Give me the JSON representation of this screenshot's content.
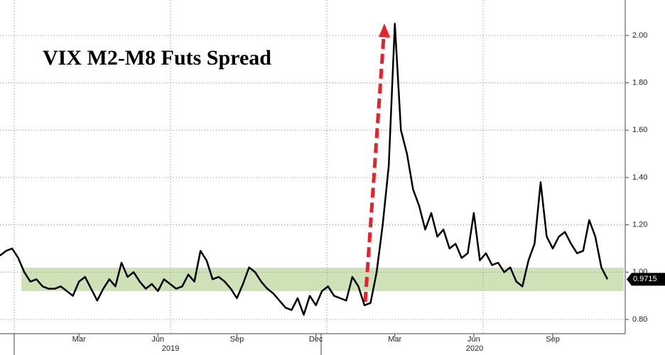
{
  "chart_data": {
    "type": "line",
    "title": "VIX M2-M8 Futs Spread",
    "categories": [
      null,
      null,
      null,
      null,
      null,
      null,
      null,
      null,
      null,
      null,
      null,
      null,
      null,
      "Mar",
      null,
      null,
      null,
      null,
      null,
      null,
      null,
      null,
      null,
      null,
      null,
      null,
      "Jun",
      null,
      null,
      null,
      null,
      null,
      null,
      null,
      null,
      null,
      null,
      null,
      null,
      "Sep",
      null,
      null,
      null,
      null,
      null,
      null,
      null,
      null,
      null,
      null,
      null,
      null,
      "Dec",
      null,
      null,
      null,
      null,
      null,
      null,
      null,
      null,
      null,
      null,
      null,
      null,
      "Mar",
      null,
      null,
      null,
      null,
      null,
      null,
      null,
      null,
      null,
      null,
      null,
      null,
      "Jun",
      null,
      null,
      null,
      null,
      null,
      null,
      null,
      null,
      null,
      null,
      null,
      null,
      "Sep",
      null,
      null,
      null,
      null,
      null,
      null,
      null,
      null,
      null
    ],
    "year_labels": [
      "2019",
      "2020"
    ],
    "series": [
      {
        "name": "VIX M2-M8 Futs Spread",
        "color": "#000000",
        "values": [
          1.07,
          1.09,
          1.1,
          1.06,
          1.0,
          0.96,
          0.97,
          0.94,
          0.93,
          0.93,
          0.94,
          0.92,
          0.9,
          0.96,
          0.98,
          0.93,
          0.88,
          0.93,
          0.97,
          0.94,
          1.04,
          0.98,
          1.0,
          0.96,
          0.93,
          0.95,
          0.92,
          0.97,
          0.95,
          0.93,
          0.94,
          0.99,
          0.96,
          1.09,
          1.05,
          0.97,
          0.98,
          0.96,
          0.93,
          0.89,
          0.95,
          1.02,
          1.0,
          0.96,
          0.93,
          0.91,
          0.88,
          0.85,
          0.84,
          0.89,
          0.82,
          0.9,
          0.86,
          0.92,
          0.94,
          0.9,
          0.89,
          0.88,
          0.98,
          0.94,
          0.86,
          0.87,
          1.0,
          1.2,
          1.45,
          2.05,
          1.6,
          1.5,
          1.35,
          1.28,
          1.18,
          1.25,
          1.15,
          1.18,
          1.1,
          1.12,
          1.06,
          1.08,
          1.25,
          1.05,
          1.08,
          1.03,
          1.04,
          1.0,
          1.02,
          0.96,
          0.94,
          1.05,
          1.12,
          1.38,
          1.15,
          1.1,
          1.15,
          1.17,
          1.12,
          1.08,
          1.09,
          1.22,
          1.15,
          1.02,
          0.97
        ]
      }
    ],
    "last_value_label": "0.9715",
    "ylim": [
      0.74,
      2.15
    ],
    "yticks": [
      {
        "value": 0.8,
        "label": "0.80"
      },
      {
        "value": 1.0,
        "label": "1.00"
      },
      {
        "value": 1.2,
        "label": "1.20"
      },
      {
        "value": 1.4,
        "label": "1.40"
      },
      {
        "value": 1.6,
        "label": "1.60"
      },
      {
        "value": 1.8,
        "label": "1.80"
      },
      {
        "value": 2.0,
        "label": "2.00"
      }
    ],
    "grid": true
  }
}
